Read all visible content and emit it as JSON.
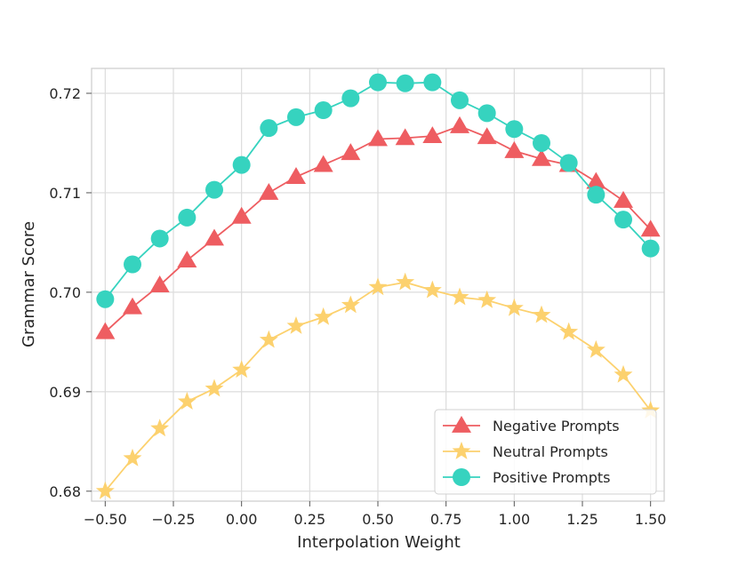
{
  "chart_data": {
    "type": "line",
    "title": "",
    "xlabel": "Interpolation Weight",
    "ylabel": "Grammar Score",
    "xlim": [
      -0.55,
      1.55
    ],
    "ylim": [
      0.679,
      0.7225
    ],
    "grid": true,
    "legend_position": "bottom-right",
    "x": [
      -0.5,
      -0.4,
      -0.3,
      -0.2,
      -0.1,
      0.0,
      0.1,
      0.2,
      0.3,
      0.4,
      0.5,
      0.6,
      0.7,
      0.8,
      0.9,
      1.0,
      1.1,
      1.2,
      1.3,
      1.4,
      1.5
    ],
    "x_ticks": [
      -0.5,
      -0.25,
      0.0,
      0.25,
      0.5,
      0.75,
      1.0,
      1.25,
      1.5
    ],
    "x_tick_labels": [
      "−0.50",
      "−0.25",
      "0.00",
      "0.25",
      "0.50",
      "0.75",
      "1.00",
      "1.25",
      "1.50"
    ],
    "y_ticks": [
      0.68,
      0.69,
      0.7,
      0.71,
      0.72
    ],
    "y_tick_labels": [
      "0.68",
      "0.69",
      "0.70",
      "0.71",
      "0.72"
    ],
    "series": [
      {
        "name": "Negative Prompts",
        "marker": "triangle",
        "color": "#ee5d61",
        "values": [
          0.696,
          0.6985,
          0.7007,
          0.7032,
          0.7054,
          0.7076,
          0.71,
          0.7116,
          0.7128,
          0.714,
          0.7154,
          0.7155,
          0.7157,
          0.7167,
          0.7156,
          0.7142,
          0.7134,
          0.7128,
          0.7111,
          0.7092,
          0.7063
        ]
      },
      {
        "name": "Neutral Prompts",
        "marker": "star",
        "color": "#fcd16e",
        "values": [
          0.68,
          0.6833,
          0.6863,
          0.689,
          0.6903,
          0.6922,
          0.6952,
          0.6966,
          0.6975,
          0.6987,
          0.7005,
          0.701,
          0.7002,
          0.6995,
          0.6992,
          0.6984,
          0.6977,
          0.696,
          0.6942,
          0.6917,
          0.6881
        ]
      },
      {
        "name": "Positive Prompts",
        "marker": "circle",
        "color": "#36d3bf",
        "values": [
          0.6993,
          0.7028,
          0.7054,
          0.7075,
          0.7103,
          0.7128,
          0.7165,
          0.7176,
          0.7183,
          0.7195,
          0.7211,
          0.721,
          0.7211,
          0.7193,
          0.718,
          0.7164,
          0.715,
          0.713,
          0.7098,
          0.7073,
          0.7044
        ]
      }
    ]
  }
}
